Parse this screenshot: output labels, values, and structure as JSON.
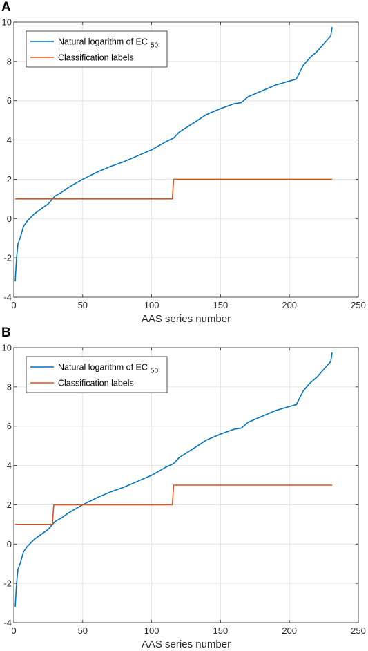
{
  "panels": [
    {
      "letter": "A",
      "chart_data": {
        "type": "line",
        "xlabel": "AAS series number",
        "ylabel": "",
        "xlim": [
          0,
          250
        ],
        "ylim": [
          -4,
          10
        ],
        "xticks": [
          0,
          50,
          100,
          150,
          200,
          250
        ],
        "yticks": [
          -4,
          -2,
          0,
          2,
          4,
          6,
          8,
          10
        ],
        "grid": true,
        "legend_position": "top-left",
        "series": [
          {
            "name": "Natural logarithm of EC",
            "name_subscript": "50",
            "color": "#0072BD",
            "x": [
              1,
              2,
              3,
              5,
              7,
              10,
              15,
              20,
              25,
              28,
              30,
              35,
              40,
              50,
              60,
              70,
              80,
              90,
              100,
              110,
              116,
              120,
              130,
              140,
              150,
              160,
              165,
              170,
              180,
              190,
              200,
              205,
              210,
              215,
              220,
              225,
              230,
              231
            ],
            "y": [
              -3.2,
              -2.0,
              -1.3,
              -0.9,
              -0.4,
              -0.1,
              0.25,
              0.5,
              0.75,
              1.0,
              1.15,
              1.35,
              1.6,
              2.0,
              2.35,
              2.65,
              2.9,
              3.2,
              3.5,
              3.9,
              4.1,
              4.4,
              4.85,
              5.3,
              5.6,
              5.85,
              5.9,
              6.2,
              6.5,
              6.8,
              7.0,
              7.1,
              7.8,
              8.2,
              8.5,
              8.9,
              9.3,
              9.75
            ]
          },
          {
            "name": "Classification labels",
            "color": "#D95319",
            "x": [
              1,
              115,
              116,
              231
            ],
            "y": [
              1,
              1,
              2,
              2
            ]
          }
        ]
      }
    },
    {
      "letter": "B",
      "chart_data": {
        "type": "line",
        "xlabel": "AAS series number",
        "ylabel": "",
        "xlim": [
          0,
          250
        ],
        "ylim": [
          -4,
          10
        ],
        "xticks": [
          0,
          50,
          100,
          150,
          200,
          250
        ],
        "yticks": [
          -4,
          -2,
          0,
          2,
          4,
          6,
          8,
          10
        ],
        "grid": true,
        "legend_position": "top-left",
        "series": [
          {
            "name": "Natural logarithm of EC",
            "name_subscript": "50",
            "color": "#0072BD",
            "x": [
              1,
              2,
              3,
              5,
              7,
              10,
              15,
              20,
              25,
              28,
              30,
              35,
              40,
              50,
              60,
              70,
              80,
              90,
              100,
              110,
              116,
              120,
              130,
              140,
              150,
              160,
              165,
              170,
              180,
              190,
              200,
              205,
              210,
              215,
              220,
              225,
              230,
              231
            ],
            "y": [
              -3.2,
              -2.0,
              -1.3,
              -0.9,
              -0.4,
              -0.1,
              0.25,
              0.5,
              0.75,
              1.0,
              1.15,
              1.35,
              1.6,
              2.0,
              2.35,
              2.65,
              2.9,
              3.2,
              3.5,
              3.9,
              4.1,
              4.4,
              4.85,
              5.3,
              5.6,
              5.85,
              5.9,
              6.2,
              6.5,
              6.8,
              7.0,
              7.1,
              7.8,
              8.2,
              8.5,
              8.9,
              9.3,
              9.75
            ]
          },
          {
            "name": "Classification labels",
            "color": "#D95319",
            "x": [
              1,
              28,
              29,
              115,
              116,
              231
            ],
            "y": [
              1,
              1,
              2,
              2,
              3,
              3
            ]
          }
        ]
      }
    }
  ]
}
